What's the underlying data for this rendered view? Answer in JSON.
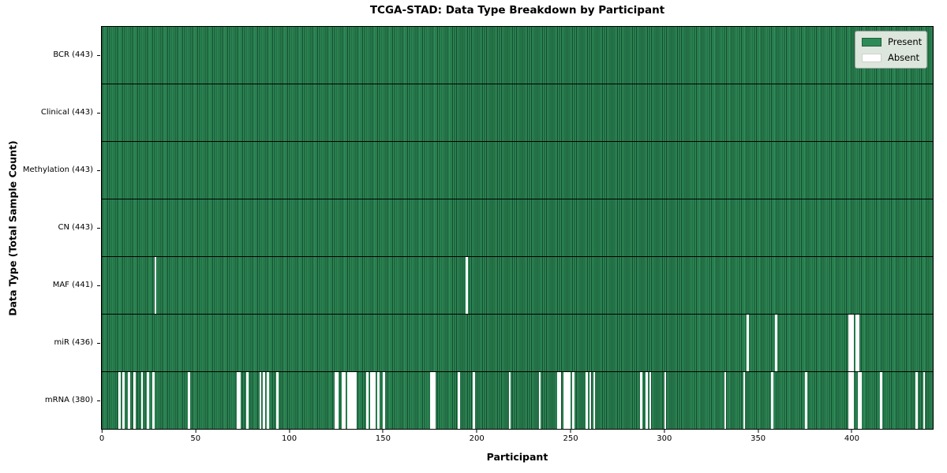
{
  "title": "TCGA-STAD: Data Type Breakdown by Participant",
  "xlabel": "Participant",
  "ylabel": "Data Type (Total Sample Count)",
  "legend": {
    "present_label": "Present",
    "absent_label": "Absent"
  },
  "colors": {
    "present": "#2e8b57",
    "present_edge": "#14482e",
    "absent": "#ffffff",
    "row_divider": "#000000",
    "legend_bg": "#dce6dc"
  },
  "chart_data": {
    "type": "heatmap",
    "title": "TCGA-STAD: Data Type Breakdown by Participant",
    "xlabel": "Participant",
    "ylabel": "Data Type (Total Sample Count)",
    "legend_entries": [
      "Present",
      "Absent"
    ],
    "legend_position": "upper right",
    "x_range": [
      0,
      443
    ],
    "n_participants": 443,
    "x_ticks": [
      0,
      50,
      100,
      150,
      200,
      250,
      300,
      350,
      400
    ],
    "rows": [
      {
        "label": "BCR (443)",
        "data_type": "BCR",
        "total": 443,
        "absent_participants": []
      },
      {
        "label": "Clinical (443)",
        "data_type": "Clinical",
        "total": 443,
        "absent_participants": []
      },
      {
        "label": "Methylation (443)",
        "data_type": "Methylation",
        "total": 443,
        "absent_participants": []
      },
      {
        "label": "CN (443)",
        "data_type": "CN",
        "total": 443,
        "absent_participants": []
      },
      {
        "label": "MAF (441)",
        "data_type": "MAF",
        "total": 441,
        "absent_participants": [
          28,
          194
        ]
      },
      {
        "label": "miR (436)",
        "data_type": "miR",
        "total": 436,
        "absent_participants": [
          344,
          359,
          398,
          399,
          400,
          402,
          403
        ]
      },
      {
        "label": "mRNA (380)",
        "data_type": "mRNA",
        "total": 380,
        "absent_participants": [
          9,
          11,
          14,
          17,
          21,
          24,
          27,
          46,
          72,
          73,
          77,
          84,
          86,
          88,
          93,
          124,
          125,
          128,
          129,
          131,
          132,
          133,
          134,
          135,
          141,
          143,
          144,
          145,
          147,
          150,
          175,
          176,
          177,
          190,
          198,
          217,
          233,
          243,
          244,
          246,
          247,
          248,
          249,
          251,
          258,
          260,
          262,
          287,
          290,
          292,
          300,
          332,
          342,
          357,
          375,
          398,
          399,
          400,
          403,
          404,
          415,
          434,
          438
        ]
      }
    ]
  }
}
